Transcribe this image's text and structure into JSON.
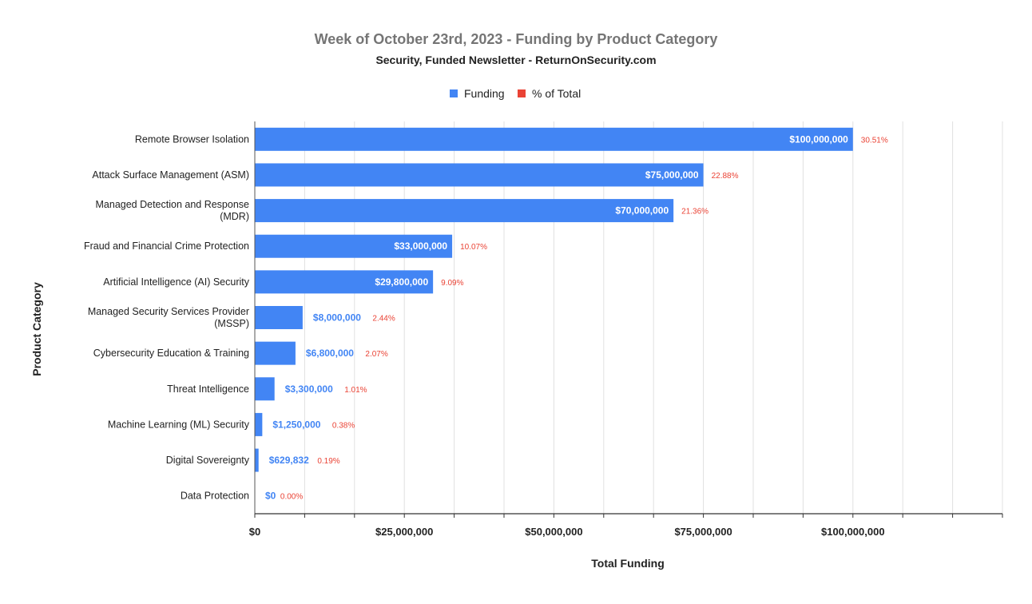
{
  "chart_data": {
    "type": "bar",
    "orientation": "horizontal",
    "title": "Week of October 23rd, 2023 - Funding by Product Category",
    "subtitle": "Security, Funded Newsletter - ReturnOnSecurity.com",
    "xlabel": "Total Funding",
    "ylabel": "Product Category",
    "xlim": [
      0,
      125000000
    ],
    "x_ticks": [
      0,
      25000000,
      50000000,
      75000000,
      100000000
    ],
    "x_tick_labels": [
      "$0",
      "$25,000,000",
      "$50,000,000",
      "$75,000,000",
      "$100,000,000"
    ],
    "grid": true,
    "legend_position": "top",
    "legend": [
      {
        "name": "Funding",
        "color": "#4285f4"
      },
      {
        "name": "% of Total",
        "color": "#ea4335"
      }
    ],
    "categories": [
      [
        "Remote Browser Isolation"
      ],
      [
        "Attack Surface Management (ASM)"
      ],
      [
        "Managed Detection and Response",
        "(MDR)"
      ],
      [
        "Fraud and Financial Crime Protection"
      ],
      [
        "Artificial Intelligence (AI) Security"
      ],
      [
        "Managed Security Services Provider",
        "(MSSP)"
      ],
      [
        "Cybersecurity Education & Training"
      ],
      [
        "Threat Intelligence"
      ],
      [
        "Machine Learning (ML) Security"
      ],
      [
        "Digital Sovereignty"
      ],
      [
        "Data Protection"
      ]
    ],
    "values": [
      100000000,
      75000000,
      70000000,
      33000000,
      29800000,
      8000000,
      6800000,
      3300000,
      1250000,
      629832,
      0
    ],
    "value_labels": [
      "$100,000,000",
      "$75,000,000",
      "$70,000,000",
      "$33,000,000",
      "$29,800,000",
      "$8,000,000",
      "$6,800,000",
      "$3,300,000",
      "$1,250,000",
      "$629,832",
      "$0"
    ],
    "percent_labels": [
      "30.51%",
      "22.88%",
      "21.36%",
      "10.07%",
      "9.09%",
      "2.44%",
      "2.07%",
      "1.01%",
      "0.38%",
      "0.19%",
      "0.00%"
    ],
    "colors": {
      "bar": "#4285f4",
      "percent": "#ea4335",
      "title": "#757575",
      "text": "#222222",
      "grid": "#e0e0e0",
      "axis": "#333333"
    }
  }
}
